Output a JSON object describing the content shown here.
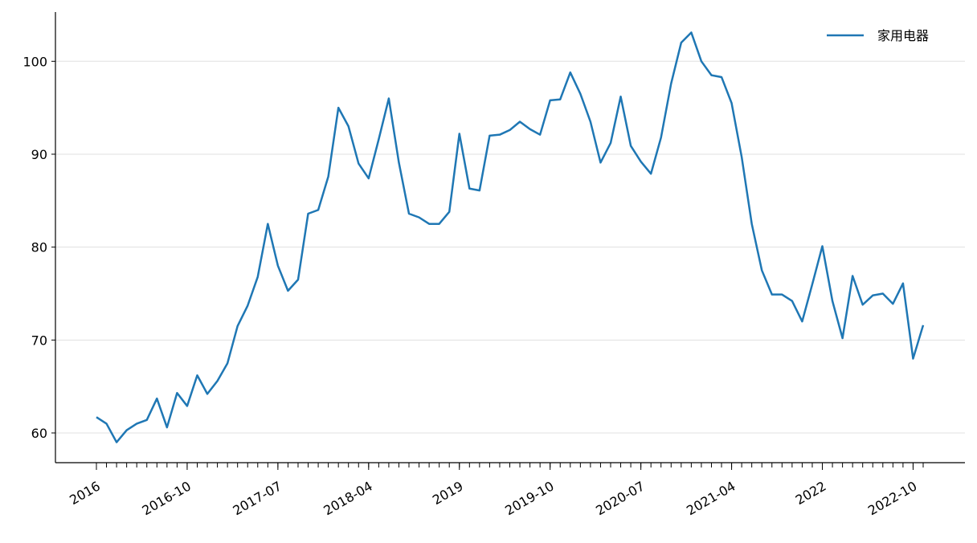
{
  "chart_data": {
    "type": "line",
    "x": [
      "2016-01",
      "2016-02",
      "2016-03",
      "2016-04",
      "2016-05",
      "2016-06",
      "2016-07",
      "2016-08",
      "2016-09",
      "2016-10",
      "2016-11",
      "2016-12",
      "2017-01",
      "2017-02",
      "2017-03",
      "2017-04",
      "2017-05",
      "2017-06",
      "2017-07",
      "2017-08",
      "2017-09",
      "2017-10",
      "2017-11",
      "2017-12",
      "2018-01",
      "2018-02",
      "2018-03",
      "2018-04",
      "2018-05",
      "2018-06",
      "2018-07",
      "2018-08",
      "2018-09",
      "2018-10",
      "2018-11",
      "2018-12",
      "2019-01",
      "2019-02",
      "2019-03",
      "2019-04",
      "2019-05",
      "2019-06",
      "2019-07",
      "2019-08",
      "2019-09",
      "2019-10",
      "2019-11",
      "2019-12",
      "2020-01",
      "2020-02",
      "2020-03",
      "2020-04",
      "2020-05",
      "2020-06",
      "2020-07",
      "2020-08",
      "2020-09",
      "2020-10",
      "2020-11",
      "2020-12",
      "2021-01",
      "2021-02",
      "2021-03",
      "2021-04",
      "2021-05",
      "2021-06",
      "2021-07",
      "2021-08",
      "2021-09",
      "2021-10",
      "2021-11",
      "2021-12",
      "2022-01",
      "2022-02",
      "2022-03",
      "2022-04",
      "2022-05",
      "2022-06",
      "2022-07",
      "2022-08",
      "2022-09",
      "2022-10",
      "2022-11"
    ],
    "series": [
      {
        "name": "家用电器",
        "color": "#1f77b4",
        "values": [
          61.7,
          61.0,
          59.0,
          60.3,
          61.0,
          61.4,
          63.7,
          60.6,
          64.3,
          62.9,
          66.2,
          64.2,
          65.6,
          67.5,
          71.5,
          73.7,
          76.8,
          82.5,
          78.0,
          75.3,
          76.5,
          83.6,
          84.0,
          87.6,
          95.0,
          93.0,
          89.0,
          87.4,
          91.6,
          96.0,
          89.1,
          83.6,
          83.2,
          82.5,
          82.5,
          83.8,
          92.2,
          86.3,
          86.1,
          92.0,
          92.1,
          92.6,
          93.5,
          92.7,
          92.1,
          95.8,
          95.9,
          98.8,
          96.5,
          93.5,
          89.1,
          91.2,
          96.2,
          90.9,
          89.2,
          87.9,
          91.8,
          97.6,
          102.0,
          103.1,
          100.0,
          98.5,
          98.3,
          95.5,
          89.7,
          82.5,
          77.5,
          74.9,
          74.9,
          74.2,
          72.0,
          76.0,
          80.1,
          74.2,
          70.2,
          76.9,
          73.8,
          74.8,
          75.0,
          73.9,
          76.1,
          68.0,
          71.6
        ]
      }
    ],
    "ylim": [
      56.8,
      105.3
    ],
    "yticks": [
      60,
      70,
      80,
      90,
      100
    ],
    "xticks": [
      {
        "value": "2016-01",
        "label": "2016"
      },
      "2016-10",
      "2017-07",
      "2018-04",
      {
        "value": "2019-01",
        "label": "2019"
      },
      "2019-10",
      "2020-07",
      "2021-04",
      {
        "value": "2022-01",
        "label": "2022"
      },
      "2022-10"
    ],
    "grid": true,
    "legend": "upper right"
  }
}
